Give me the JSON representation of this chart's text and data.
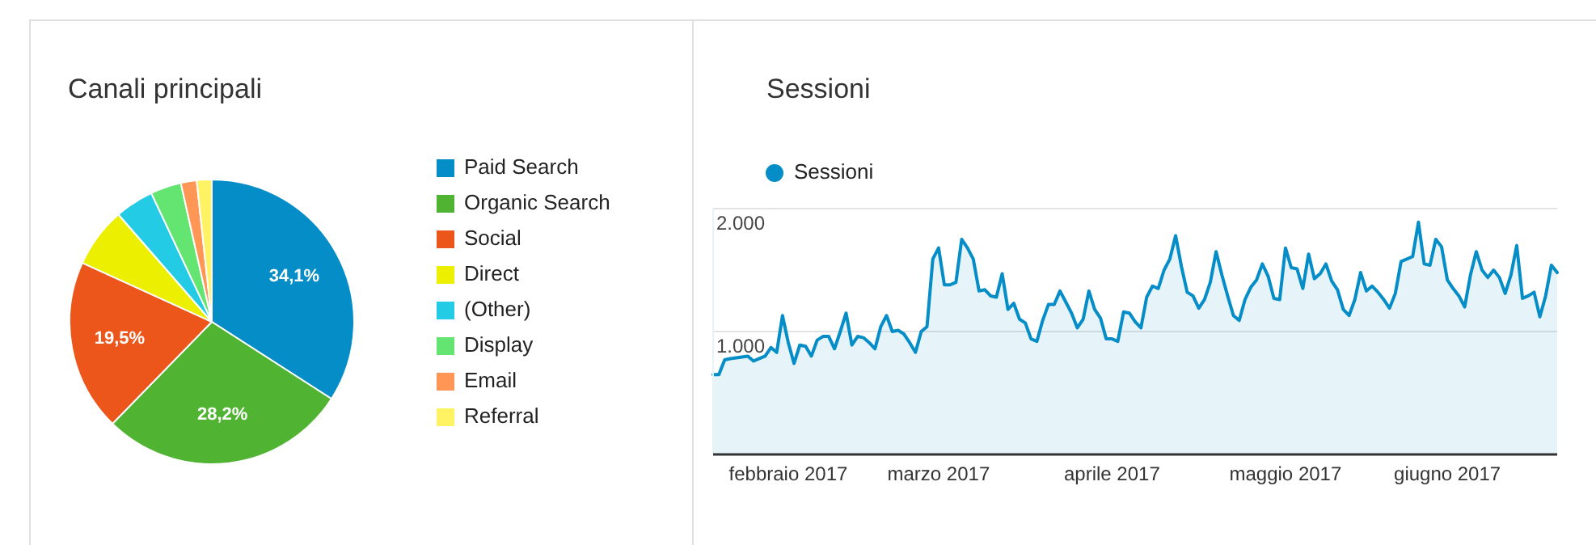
{
  "chart_data": [
    {
      "type": "pie",
      "title": "Canali principali",
      "legend": "right",
      "categories": [
        "Paid Search",
        "Organic Search",
        "Social",
        "Direct",
        "(Other)",
        "Display",
        "Email",
        "Referral"
      ],
      "values": [
        34.1,
        28.2,
        19.5,
        6.8,
        4.4,
        3.5,
        1.8,
        1.7
      ],
      "colors": [
        "#058dc7",
        "#50b432",
        "#ed561b",
        "#edef00",
        "#24cbe5",
        "#64e572",
        "#ff9655",
        "#fff263"
      ],
      "value_labels": [
        "34,1%",
        "28,2%",
        "19,5%",
        null,
        null,
        null,
        null,
        null
      ]
    },
    {
      "type": "area",
      "title": "Sessioni",
      "legend": "top left",
      "grid": "y",
      "xlim": [
        "2017-02-01",
        "2017-06-27"
      ],
      "xticks": [
        {
          "value": "2017-02-14",
          "label": "febbraio 2017"
        },
        {
          "value": "2017-03-12",
          "label": "marzo 2017"
        },
        {
          "value": "2017-04-11",
          "label": "aprile 2017"
        },
        {
          "value": "2017-05-11",
          "label": "maggio 2017"
        },
        {
          "value": "2017-06-08",
          "label": "giugno 2017"
        }
      ],
      "ylim": [
        0,
        2000
      ],
      "yticks": [
        {
          "value": 1000,
          "label": "1.000"
        },
        {
          "value": 2000,
          "label": "2.000"
        }
      ],
      "series": [
        {
          "name": "Sessioni",
          "color": "#058dc7",
          "x": [
            "2017-02-01",
            "2017-02-02",
            "2017-02-03",
            "2017-02-04",
            "2017-02-07",
            "2017-02-08",
            "2017-02-09",
            "2017-02-10",
            "2017-02-11",
            "2017-02-12",
            "2017-02-13",
            "2017-02-14",
            "2017-02-15",
            "2017-02-16",
            "2017-02-17",
            "2017-02-18",
            "2017-02-19",
            "2017-02-20",
            "2017-02-21",
            "2017-02-22",
            "2017-02-23",
            "2017-02-24",
            "2017-02-25",
            "2017-02-26",
            "2017-02-27",
            "2017-02-28",
            "2017-03-01",
            "2017-03-02",
            "2017-03-03",
            "2017-03-04",
            "2017-03-05",
            "2017-03-06",
            "2017-03-07",
            "2017-03-08",
            "2017-03-09",
            "2017-03-10",
            "2017-03-11",
            "2017-03-12",
            "2017-03-13",
            "2017-03-14",
            "2017-03-15",
            "2017-03-16",
            "2017-03-17",
            "2017-03-18",
            "2017-03-19",
            "2017-03-20",
            "2017-03-21",
            "2017-03-22",
            "2017-03-23",
            "2017-03-24",
            "2017-03-25",
            "2017-03-26",
            "2017-03-27",
            "2017-03-28",
            "2017-03-29",
            "2017-03-30",
            "2017-03-31",
            "2017-04-01",
            "2017-04-02",
            "2017-04-03",
            "2017-04-04",
            "2017-04-05",
            "2017-04-06",
            "2017-04-07",
            "2017-04-08",
            "2017-04-09",
            "2017-04-10",
            "2017-04-11",
            "2017-04-12",
            "2017-04-13",
            "2017-04-14",
            "2017-04-15",
            "2017-04-16",
            "2017-04-17",
            "2017-04-18",
            "2017-04-19",
            "2017-04-20",
            "2017-04-21",
            "2017-04-22",
            "2017-04-23",
            "2017-04-24",
            "2017-04-25",
            "2017-04-26",
            "2017-04-27",
            "2017-04-28",
            "2017-04-29",
            "2017-04-30",
            "2017-05-01",
            "2017-05-02",
            "2017-05-03",
            "2017-05-04",
            "2017-05-05",
            "2017-05-06",
            "2017-05-07",
            "2017-05-08",
            "2017-05-09",
            "2017-05-10",
            "2017-05-11",
            "2017-05-12",
            "2017-05-13",
            "2017-05-14",
            "2017-05-15",
            "2017-05-16",
            "2017-05-17",
            "2017-05-18",
            "2017-05-19",
            "2017-05-20",
            "2017-05-21",
            "2017-05-22",
            "2017-05-23",
            "2017-05-24",
            "2017-05-25",
            "2017-05-26",
            "2017-05-27",
            "2017-05-28",
            "2017-05-29",
            "2017-05-30",
            "2017-05-31",
            "2017-06-01",
            "2017-06-02",
            "2017-06-03",
            "2017-06-04",
            "2017-06-05",
            "2017-06-06",
            "2017-06-07",
            "2017-06-08",
            "2017-06-09",
            "2017-06-10",
            "2017-06-11",
            "2017-06-12",
            "2017-06-13",
            "2017-06-14",
            "2017-06-15",
            "2017-06-16",
            "2017-06-17",
            "2017-06-18",
            "2017-06-19",
            "2017-06-20",
            "2017-06-21",
            "2017-06-22",
            "2017-06-23",
            "2017-06-24",
            "2017-06-25",
            "2017-06-26",
            "2017-06-27"
          ],
          "values": [
            650,
            650,
            770,
            780,
            800,
            760,
            780,
            800,
            870,
            830,
            1130,
            910,
            740,
            890,
            880,
            800,
            930,
            960,
            960,
            860,
            1000,
            1150,
            890,
            960,
            950,
            910,
            860,
            1040,
            1130,
            1000,
            1010,
            980,
            910,
            830,
            1000,
            1040,
            1590,
            1680,
            1380,
            1380,
            1400,
            1750,
            1680,
            1590,
            1330,
            1340,
            1290,
            1280,
            1470,
            1180,
            1230,
            1100,
            1070,
            940,
            920,
            1090,
            1220,
            1220,
            1330,
            1240,
            1150,
            1030,
            1100,
            1330,
            1180,
            1110,
            940,
            940,
            920,
            1160,
            1150,
            1080,
            1030,
            1280,
            1370,
            1350,
            1500,
            1590,
            1780,
            1530,
            1320,
            1290,
            1190,
            1260,
            1400,
            1650,
            1460,
            1290,
            1130,
            1090,
            1260,
            1360,
            1420,
            1550,
            1450,
            1270,
            1260,
            1680,
            1520,
            1510,
            1350,
            1630,
            1430,
            1470,
            1550,
            1410,
            1340,
            1180,
            1130,
            1260,
            1480,
            1330,
            1370,
            1320,
            1260,
            1190,
            1310,
            1570,
            1590,
            1610,
            1890,
            1550,
            1540,
            1750,
            1690,
            1420,
            1350,
            1290,
            1200,
            1460,
            1650,
            1500,
            1440,
            1500,
            1440,
            1310,
            1460,
            1700,
            1270,
            1290,
            1320,
            1120,
            1290,
            1540,
            1480
          ]
        }
      ]
    }
  ]
}
